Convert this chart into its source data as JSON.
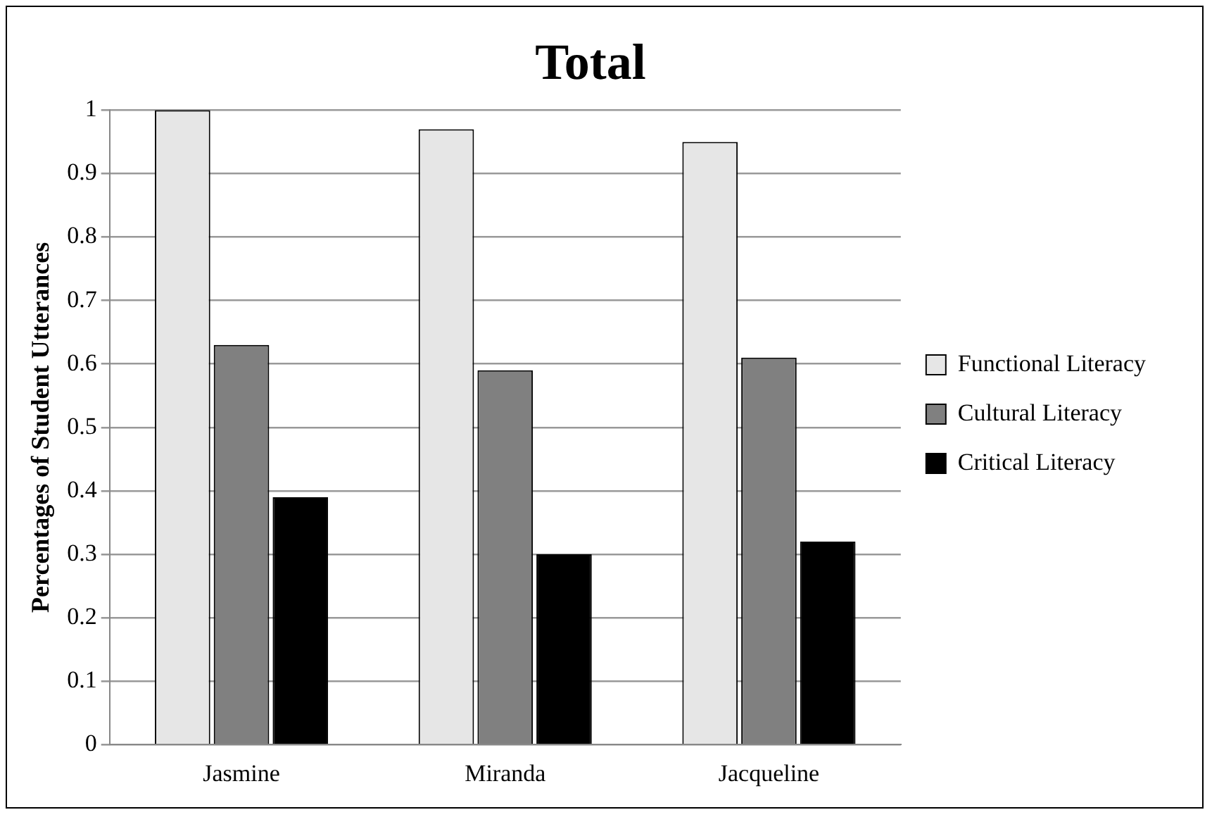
{
  "chart_data": {
    "type": "bar",
    "title": "Total",
    "ylabel": "Percentages of Student Utterances",
    "categories": [
      "Jasmine",
      "Miranda",
      "Jacqueline"
    ],
    "series": [
      {
        "name": "Functional Literacy",
        "color": "#e6e6e6",
        "values": [
          1,
          0.97,
          0.95
        ]
      },
      {
        "name": "Cultural Literacy",
        "color": "#808080",
        "values": [
          0.63,
          0.59,
          0.61
        ]
      },
      {
        "name": "Critical Literacy",
        "color": "#000000",
        "values": [
          0.39,
          0.3,
          0.32
        ]
      }
    ],
    "ylim": [
      0,
      1
    ],
    "yticks": [
      0,
      0.1,
      0.2,
      0.3,
      0.4,
      0.5,
      0.6,
      0.7,
      0.8,
      0.9,
      1
    ],
    "grid": "y",
    "legend": "right"
  }
}
